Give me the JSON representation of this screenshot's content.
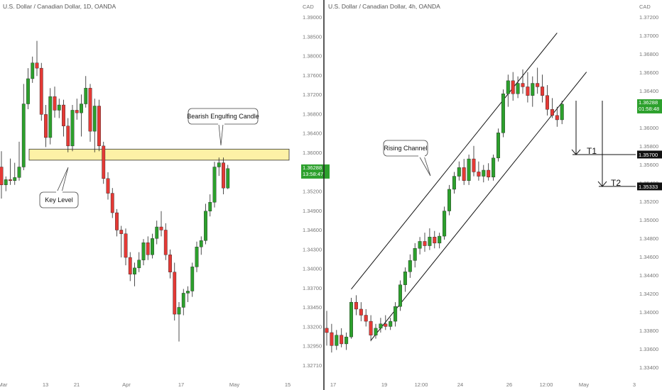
{
  "colors": {
    "up": "#2ca02c",
    "down": "#e53935",
    "wick": "#222222",
    "zone_fill": "#fdf1a6",
    "zone_stroke": "#333333",
    "divider": "#222222",
    "axis_text": "#777777"
  },
  "left_chart": {
    "title": "U.S. Dollar / Canadian Dollar, 1D, OANDA",
    "currency": "CAD",
    "y_ticks": [
      "1.39000",
      "1.38500",
      "1.38000",
      "1.37600",
      "1.37200",
      "1.36800",
      "1.36400",
      "1.36000",
      "1.35600",
      "1.35200",
      "1.34900",
      "1.34600",
      "1.34300",
      "1.34000",
      "1.33700",
      "1.33450",
      "1.33200",
      "1.32950",
      "1.32710"
    ],
    "x_ticks": [
      "Mar",
      "13",
      "21",
      "Apr",
      "17",
      "May",
      "15"
    ],
    "price_tag": {
      "price": "1.36288",
      "timer": "13:58:47"
    },
    "annotations": {
      "bearish_engulfing": "Bearish Engulfing Candle",
      "key_level": "Key Level"
    },
    "chart_data": {
      "type": "candlestick",
      "y_range": [
        1.3255,
        1.392
      ],
      "candles": [
        {
          "o": 1.3632,
          "h": 1.3662,
          "l": 1.3572,
          "c": 1.3598
        },
        {
          "o": 1.3598,
          "h": 1.3614,
          "l": 1.3586,
          "c": 1.3608
        },
        {
          "o": 1.3608,
          "h": 1.3648,
          "l": 1.3598,
          "c": 1.3606
        },
        {
          "o": 1.3606,
          "h": 1.364,
          "l": 1.3598,
          "c": 1.3612
        },
        {
          "o": 1.3612,
          "h": 1.368,
          "l": 1.3606,
          "c": 1.3632
        },
        {
          "o": 1.3632,
          "h": 1.379,
          "l": 1.3626,
          "c": 1.3752
        },
        {
          "o": 1.3752,
          "h": 1.382,
          "l": 1.3742,
          "c": 1.38
        },
        {
          "o": 1.38,
          "h": 1.3842,
          "l": 1.3792,
          "c": 1.383
        },
        {
          "o": 1.383,
          "h": 1.3872,
          "l": 1.3805,
          "c": 1.382
        },
        {
          "o": 1.382,
          "h": 1.383,
          "l": 1.372,
          "c": 1.3732
        },
        {
          "o": 1.3732,
          "h": 1.375,
          "l": 1.367,
          "c": 1.3688
        },
        {
          "o": 1.3688,
          "h": 1.3782,
          "l": 1.3675,
          "c": 1.3766
        },
        {
          "o": 1.3766,
          "h": 1.3785,
          "l": 1.3726,
          "c": 1.374
        },
        {
          "o": 1.374,
          "h": 1.3762,
          "l": 1.3725,
          "c": 1.375
        },
        {
          "o": 1.375,
          "h": 1.376,
          "l": 1.369,
          "c": 1.371
        },
        {
          "o": 1.371,
          "h": 1.3725,
          "l": 1.366,
          "c": 1.3672
        },
        {
          "o": 1.3672,
          "h": 1.375,
          "l": 1.3662,
          "c": 1.374
        },
        {
          "o": 1.374,
          "h": 1.3762,
          "l": 1.3722,
          "c": 1.3735
        },
        {
          "o": 1.3735,
          "h": 1.377,
          "l": 1.369,
          "c": 1.3752
        },
        {
          "o": 1.3752,
          "h": 1.3805,
          "l": 1.3745,
          "c": 1.3782
        },
        {
          "o": 1.3782,
          "h": 1.379,
          "l": 1.368,
          "c": 1.37
        },
        {
          "o": 1.37,
          "h": 1.3762,
          "l": 1.366,
          "c": 1.3748
        },
        {
          "o": 1.3748,
          "h": 1.376,
          "l": 1.3662,
          "c": 1.3672
        },
        {
          "o": 1.3672,
          "h": 1.368,
          "l": 1.36,
          "c": 1.361
        },
        {
          "o": 1.361,
          "h": 1.3622,
          "l": 1.357,
          "c": 1.3582
        },
        {
          "o": 1.3582,
          "h": 1.3592,
          "l": 1.3535,
          "c": 1.3545
        },
        {
          "o": 1.3545,
          "h": 1.3552,
          "l": 1.35,
          "c": 1.3512
        },
        {
          "o": 1.3512,
          "h": 1.352,
          "l": 1.346,
          "c": 1.3505
        },
        {
          "o": 1.3505,
          "h": 1.3515,
          "l": 1.3445,
          "c": 1.346
        },
        {
          "o": 1.346,
          "h": 1.347,
          "l": 1.3415,
          "c": 1.3428
        },
        {
          "o": 1.3428,
          "h": 1.345,
          "l": 1.3405,
          "c": 1.344
        },
        {
          "o": 1.344,
          "h": 1.347,
          "l": 1.3432,
          "c": 1.3455
        },
        {
          "o": 1.3455,
          "h": 1.3495,
          "l": 1.3445,
          "c": 1.3488
        },
        {
          "o": 1.3488,
          "h": 1.35,
          "l": 1.3455,
          "c": 1.3465
        },
        {
          "o": 1.3465,
          "h": 1.3505,
          "l": 1.3458,
          "c": 1.3496
        },
        {
          "o": 1.3496,
          "h": 1.353,
          "l": 1.3485,
          "c": 1.3518
        },
        {
          "o": 1.3518,
          "h": 1.3548,
          "l": 1.35,
          "c": 1.3512
        },
        {
          "o": 1.3512,
          "h": 1.3525,
          "l": 1.3455,
          "c": 1.3465
        },
        {
          "o": 1.3465,
          "h": 1.3475,
          "l": 1.342,
          "c": 1.3432
        },
        {
          "o": 1.3432,
          "h": 1.345,
          "l": 1.334,
          "c": 1.3352
        },
        {
          "o": 1.3352,
          "h": 1.3375,
          "l": 1.33,
          "c": 1.3365
        },
        {
          "o": 1.3365,
          "h": 1.34,
          "l": 1.335,
          "c": 1.3392
        },
        {
          "o": 1.3392,
          "h": 1.3405,
          "l": 1.3375,
          "c": 1.3396
        },
        {
          "o": 1.3396,
          "h": 1.345,
          "l": 1.3385,
          "c": 1.3442
        },
        {
          "o": 1.3442,
          "h": 1.349,
          "l": 1.3432,
          "c": 1.348
        },
        {
          "o": 1.348,
          "h": 1.35,
          "l": 1.3465,
          "c": 1.3492
        },
        {
          "o": 1.3492,
          "h": 1.3562,
          "l": 1.3485,
          "c": 1.3548
        },
        {
          "o": 1.3548,
          "h": 1.358,
          "l": 1.3538,
          "c": 1.3565
        },
        {
          "o": 1.3565,
          "h": 1.3642,
          "l": 1.3555,
          "c": 1.3632
        },
        {
          "o": 1.3632,
          "h": 1.365,
          "l": 1.3615,
          "c": 1.364
        },
        {
          "o": 1.364,
          "h": 1.365,
          "l": 1.358,
          "c": 1.3592
        },
        {
          "o": 1.3592,
          "h": 1.3636,
          "l": 1.359,
          "c": 1.3629
        }
      ],
      "key_level_zone": [
        1.3645,
        1.3666
      ]
    }
  },
  "right_chart": {
    "title": "U.S. Dollar / Canadian Dollar, 4h, OANDA",
    "currency": "CAD",
    "y_ticks": [
      "1.37200",
      "1.37000",
      "1.36800",
      "1.36600",
      "1.36400",
      "1.36200",
      "1.36000",
      "1.35800",
      "1.35600",
      "1.35400",
      "1.35200",
      "1.35000",
      "1.34800",
      "1.34600",
      "1.34400",
      "1.34200",
      "1.34000",
      "1.33800",
      "1.33600",
      "1.33400"
    ],
    "x_ticks": [
      "17",
      "19",
      "12:00",
      "24",
      "26",
      "12:00",
      "May",
      "3"
    ],
    "price_tag": {
      "price": "1.36288",
      "timer": "01:58:48"
    },
    "target_tags": {
      "t1": "1.35700",
      "t2": "1.35333"
    },
    "annotations": {
      "rising_channel": "Rising Channel",
      "t1": "T1",
      "t2": "T2"
    },
    "chart_data": {
      "type": "candlestick",
      "y_range": [
        1.3325,
        1.373
      ],
      "channel": {
        "upper": [
          {
            "i": 5,
            "p": 1.3415
          },
          {
            "i": 47,
            "p": 1.371
          }
        ],
        "lower": [
          {
            "i": 9,
            "p": 1.3356
          },
          {
            "i": 53,
            "p": 1.3665
          }
        ]
      },
      "t1_level": 1.357,
      "t2_level": 1.35333,
      "candles": [
        {
          "o": 1.337,
          "h": 1.339,
          "l": 1.335,
          "c": 1.3365
        },
        {
          "o": 1.3365,
          "h": 1.3375,
          "l": 1.3342,
          "c": 1.335
        },
        {
          "o": 1.335,
          "h": 1.3368,
          "l": 1.3345,
          "c": 1.3362
        },
        {
          "o": 1.3362,
          "h": 1.337,
          "l": 1.3348,
          "c": 1.3352
        },
        {
          "o": 1.3352,
          "h": 1.3365,
          "l": 1.3345,
          "c": 1.336
        },
        {
          "o": 1.336,
          "h": 1.3405,
          "l": 1.3358,
          "c": 1.34
        },
        {
          "o": 1.34,
          "h": 1.3408,
          "l": 1.3385,
          "c": 1.3392
        },
        {
          "o": 1.3392,
          "h": 1.34,
          "l": 1.3378,
          "c": 1.3385
        },
        {
          "o": 1.3385,
          "h": 1.3392,
          "l": 1.3372,
          "c": 1.3378
        },
        {
          "o": 1.3378,
          "h": 1.3385,
          "l": 1.3355,
          "c": 1.3362
        },
        {
          "o": 1.3362,
          "h": 1.3375,
          "l": 1.3358,
          "c": 1.337
        },
        {
          "o": 1.337,
          "h": 1.3382,
          "l": 1.3365,
          "c": 1.3375
        },
        {
          "o": 1.3375,
          "h": 1.3385,
          "l": 1.3368,
          "c": 1.3372
        },
        {
          "o": 1.3372,
          "h": 1.3382,
          "l": 1.3368,
          "c": 1.3378
        },
        {
          "o": 1.3378,
          "h": 1.34,
          "l": 1.3372,
          "c": 1.3395
        },
        {
          "o": 1.3395,
          "h": 1.3425,
          "l": 1.339,
          "c": 1.342
        },
        {
          "o": 1.342,
          "h": 1.344,
          "l": 1.3412,
          "c": 1.3435
        },
        {
          "o": 1.3435,
          "h": 1.3455,
          "l": 1.3428,
          "c": 1.3448
        },
        {
          "o": 1.3448,
          "h": 1.3468,
          "l": 1.344,
          "c": 1.3462
        },
        {
          "o": 1.3462,
          "h": 1.3475,
          "l": 1.3455,
          "c": 1.347
        },
        {
          "o": 1.347,
          "h": 1.348,
          "l": 1.3458,
          "c": 1.3465
        },
        {
          "o": 1.3465,
          "h": 1.3485,
          "l": 1.346,
          "c": 1.3475
        },
        {
          "o": 1.3475,
          "h": 1.3482,
          "l": 1.3462,
          "c": 1.3468
        },
        {
          "o": 1.3468,
          "h": 1.348,
          "l": 1.3462,
          "c": 1.3476
        },
        {
          "o": 1.3476,
          "h": 1.351,
          "l": 1.3472,
          "c": 1.3505
        },
        {
          "o": 1.3505,
          "h": 1.3535,
          "l": 1.35,
          "c": 1.353
        },
        {
          "o": 1.353,
          "h": 1.355,
          "l": 1.3525,
          "c": 1.3545
        },
        {
          "o": 1.3545,
          "h": 1.3562,
          "l": 1.354,
          "c": 1.3555
        },
        {
          "o": 1.3555,
          "h": 1.3565,
          "l": 1.3535,
          "c": 1.354
        },
        {
          "o": 1.354,
          "h": 1.357,
          "l": 1.3535,
          "c": 1.3565
        },
        {
          "o": 1.3565,
          "h": 1.358,
          "l": 1.3545,
          "c": 1.355
        },
        {
          "o": 1.355,
          "h": 1.3562,
          "l": 1.354,
          "c": 1.3545
        },
        {
          "o": 1.3545,
          "h": 1.3558,
          "l": 1.3538,
          "c": 1.3552
        },
        {
          "o": 1.3552,
          "h": 1.356,
          "l": 1.354,
          "c": 1.3544
        },
        {
          "o": 1.3544,
          "h": 1.357,
          "l": 1.354,
          "c": 1.3566
        },
        {
          "o": 1.3566,
          "h": 1.36,
          "l": 1.3562,
          "c": 1.3595
        },
        {
          "o": 1.3595,
          "h": 1.3645,
          "l": 1.359,
          "c": 1.364
        },
        {
          "o": 1.364,
          "h": 1.3662,
          "l": 1.3625,
          "c": 1.3655
        },
        {
          "o": 1.3655,
          "h": 1.3665,
          "l": 1.3632,
          "c": 1.364
        },
        {
          "o": 1.364,
          "h": 1.366,
          "l": 1.3635,
          "c": 1.3652
        },
        {
          "o": 1.3652,
          "h": 1.3668,
          "l": 1.364,
          "c": 1.3648
        },
        {
          "o": 1.3648,
          "h": 1.3665,
          "l": 1.363,
          "c": 1.3638
        },
        {
          "o": 1.3638,
          "h": 1.366,
          "l": 1.3625,
          "c": 1.3652
        },
        {
          "o": 1.3652,
          "h": 1.367,
          "l": 1.364,
          "c": 1.3648
        },
        {
          "o": 1.3648,
          "h": 1.3662,
          "l": 1.363,
          "c": 1.3638
        },
        {
          "o": 1.3638,
          "h": 1.365,
          "l": 1.3615,
          "c": 1.3622
        },
        {
          "o": 1.3622,
          "h": 1.3635,
          "l": 1.3612,
          "c": 1.3615
        },
        {
          "o": 1.3615,
          "h": 1.3625,
          "l": 1.3602,
          "c": 1.361
        },
        {
          "o": 1.361,
          "h": 1.3632,
          "l": 1.3605,
          "c": 1.3628
        }
      ]
    }
  }
}
